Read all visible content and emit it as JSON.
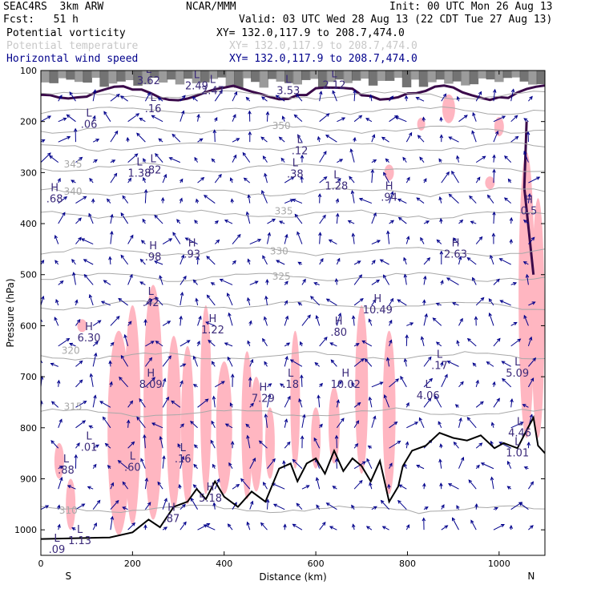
{
  "header": {
    "run": "SEAC4RS  3km ARW",
    "org": "NCAR/MMM",
    "init": "Init: 00 UTC Mon 26 Aug 13",
    "fcst": "Fcst:   51 h",
    "valid": "Valid: 03 UTC Wed 28 Aug 13 (22 CDT Tue 27 Aug 13)"
  },
  "legend": [
    {
      "label": "Potential vorticity",
      "xy": "XY= 132.0,117.9 to 208.7,474.0",
      "color": "#000000"
    },
    {
      "label": "Potential temperature",
      "xy": "XY= 132.0,117.9 to 208.7,474.0",
      "color": "#c8c8c8"
    },
    {
      "label": "Horizontal wind speed",
      "xy": "XY= 132.0,117.9 to 208.7,474.0",
      "color": "#00008b"
    }
  ],
  "chart_data": {
    "type": "cross-section",
    "xlabel": "Distance (km)",
    "ylabel": "Pressure (hPa)",
    "xlim": [
      0,
      1100
    ],
    "ylim": [
      1050,
      100
    ],
    "x_ticks": [
      0,
      200,
      400,
      600,
      800,
      1000
    ],
    "y_ticks": [
      100,
      200,
      300,
      400,
      500,
      600,
      700,
      800,
      900,
      1000
    ],
    "x_end_labels": {
      "left": "S",
      "right": "N"
    },
    "colors": {
      "terrain": "#000000",
      "pv_fill": "#ffb6c1",
      "pv_contour": "#3a0a4a",
      "isentrope": "#a8a8a8",
      "wind": "#00008b",
      "hl_label": "#3b2a7a"
    },
    "isentropes": [
      {
        "value": "310",
        "x": 60,
        "p": 968
      },
      {
        "value": "315",
        "x": 70,
        "p": 765
      },
      {
        "value": "320",
        "x": 65,
        "p": 655
      },
      {
        "value": "325",
        "x": 525,
        "p": 510
      },
      {
        "value": "330",
        "x": 520,
        "p": 460
      },
      {
        "value": "335",
        "x": 530,
        "p": 382
      },
      {
        "value": "340",
        "x": 70,
        "p": 343
      },
      {
        "value": "345",
        "x": 70,
        "p": 290
      },
      {
        "value": "350",
        "x": 525,
        "p": 215
      }
    ],
    "hl_labels": [
      {
        "mark": "H",
        "value": ".68",
        "x": 30,
        "p": 358
      },
      {
        "mark": "L",
        "value": ".06",
        "x": 105,
        "p": 212
      },
      {
        "mark": "L",
        "value": "1.38",
        "x": 215,
        "p": 308
      },
      {
        "mark": "L",
        "value": ".82",
        "x": 245,
        "p": 302
      },
      {
        "mark": "L",
        "value": ".16",
        "x": 245,
        "p": 182
      },
      {
        "mark": "L",
        "value": "3.62",
        "x": 235,
        "p": 127
      },
      {
        "mark": "L",
        "value": "2.49",
        "x": 340,
        "p": 137
      },
      {
        "mark": "L",
        "value": "2.47",
        "x": 375,
        "p": 146
      },
      {
        "mark": "L",
        "value": "3.53",
        "x": 540,
        "p": 146
      },
      {
        "mark": "L",
        "value": "2.12",
        "x": 640,
        "p": 135
      },
      {
        "mark": "L",
        "value": ".12",
        "x": 565,
        "p": 264
      },
      {
        "mark": "L",
        "value": ".38",
        "x": 555,
        "p": 310
      },
      {
        "mark": "L",
        "value": "1.28",
        "x": 645,
        "p": 333
      },
      {
        "mark": "H",
        "value": ".94",
        "x": 760,
        "p": 355
      },
      {
        "mark": "H",
        "value": ".98",
        "x": 245,
        "p": 472
      },
      {
        "mark": "H",
        "value": ".93",
        "x": 330,
        "p": 467
      },
      {
        "mark": "H",
        "value": "2.63",
        "x": 905,
        "p": 467
      },
      {
        "mark": "L",
        "value": ".42",
        "x": 240,
        "p": 562
      },
      {
        "mark": "H",
        "value": "10.49",
        "x": 735,
        "p": 576
      },
      {
        "mark": "H",
        "value": "6.30",
        "x": 105,
        "p": 631
      },
      {
        "mark": "H",
        "value": "1.22",
        "x": 375,
        "p": 615
      },
      {
        "mark": "H",
        "value": ".80",
        "x": 650,
        "p": 620
      },
      {
        "mark": "L",
        "value": ".17",
        "x": 870,
        "p": 685
      },
      {
        "mark": "H",
        "value": "8.09",
        "x": 240,
        "p": 722
      },
      {
        "mark": "H",
        "value": "7.29",
        "x": 485,
        "p": 749
      },
      {
        "mark": "L",
        "value": ".18",
        "x": 545,
        "p": 722
      },
      {
        "mark": "H",
        "value": "10.02",
        "x": 665,
        "p": 722
      },
      {
        "mark": "L",
        "value": "4.06",
        "x": 845,
        "p": 744
      },
      {
        "mark": "L",
        "value": ".01",
        "x": 105,
        "p": 845
      },
      {
        "mark": "L",
        "value": ".16",
        "x": 310,
        "p": 868
      },
      {
        "mark": "L",
        "value": ".60",
        "x": 200,
        "p": 884
      },
      {
        "mark": "L",
        "value": ".88",
        "x": 55,
        "p": 890
      },
      {
        "mark": "H",
        "value": "5.18",
        "x": 370,
        "p": 945
      },
      {
        "mark": "H",
        "value": ".87",
        "x": 285,
        "p": 985
      },
      {
        "mark": "L",
        "value": "1.13",
        "x": 85,
        "p": 1028
      },
      {
        "mark": "L",
        "value": "1.01",
        "x": 1040,
        "p": 856
      },
      {
        "mark": "L",
        "value": "4.46",
        "x": 1045,
        "p": 817
      },
      {
        "mark": "L",
        "value": ".09",
        "x": 35,
        "p": 1045
      },
      {
        "mark": "L",
        "value": "5.09",
        "x": 1040,
        "p": 700
      },
      {
        "mark": "H",
        "value": "0.5",
        "x": 1065,
        "p": 382
      }
    ],
    "terrain": [
      [
        0,
        1018
      ],
      [
        150,
        1015
      ],
      [
        200,
        1005
      ],
      [
        235,
        980
      ],
      [
        260,
        995
      ],
      [
        290,
        955
      ],
      [
        320,
        945
      ],
      [
        340,
        920
      ],
      [
        360,
        940
      ],
      [
        380,
        905
      ],
      [
        400,
        935
      ],
      [
        430,
        955
      ],
      [
        460,
        925
      ],
      [
        490,
        945
      ],
      [
        520,
        880
      ],
      [
        545,
        870
      ],
      [
        560,
        905
      ],
      [
        580,
        870
      ],
      [
        600,
        860
      ],
      [
        620,
        890
      ],
      [
        640,
        845
      ],
      [
        660,
        885
      ],
      [
        680,
        860
      ],
      [
        700,
        875
      ],
      [
        720,
        905
      ],
      [
        740,
        865
      ],
      [
        760,
        945
      ],
      [
        780,
        915
      ],
      [
        790,
        875
      ],
      [
        810,
        845
      ],
      [
        840,
        835
      ],
      [
        870,
        810
      ],
      [
        900,
        820
      ],
      [
        930,
        825
      ],
      [
        960,
        815
      ],
      [
        990,
        840
      ],
      [
        1010,
        830
      ],
      [
        1040,
        840
      ],
      [
        1060,
        805
      ],
      [
        1075,
        780
      ],
      [
        1085,
        835
      ],
      [
        1100,
        850
      ]
    ]
  }
}
